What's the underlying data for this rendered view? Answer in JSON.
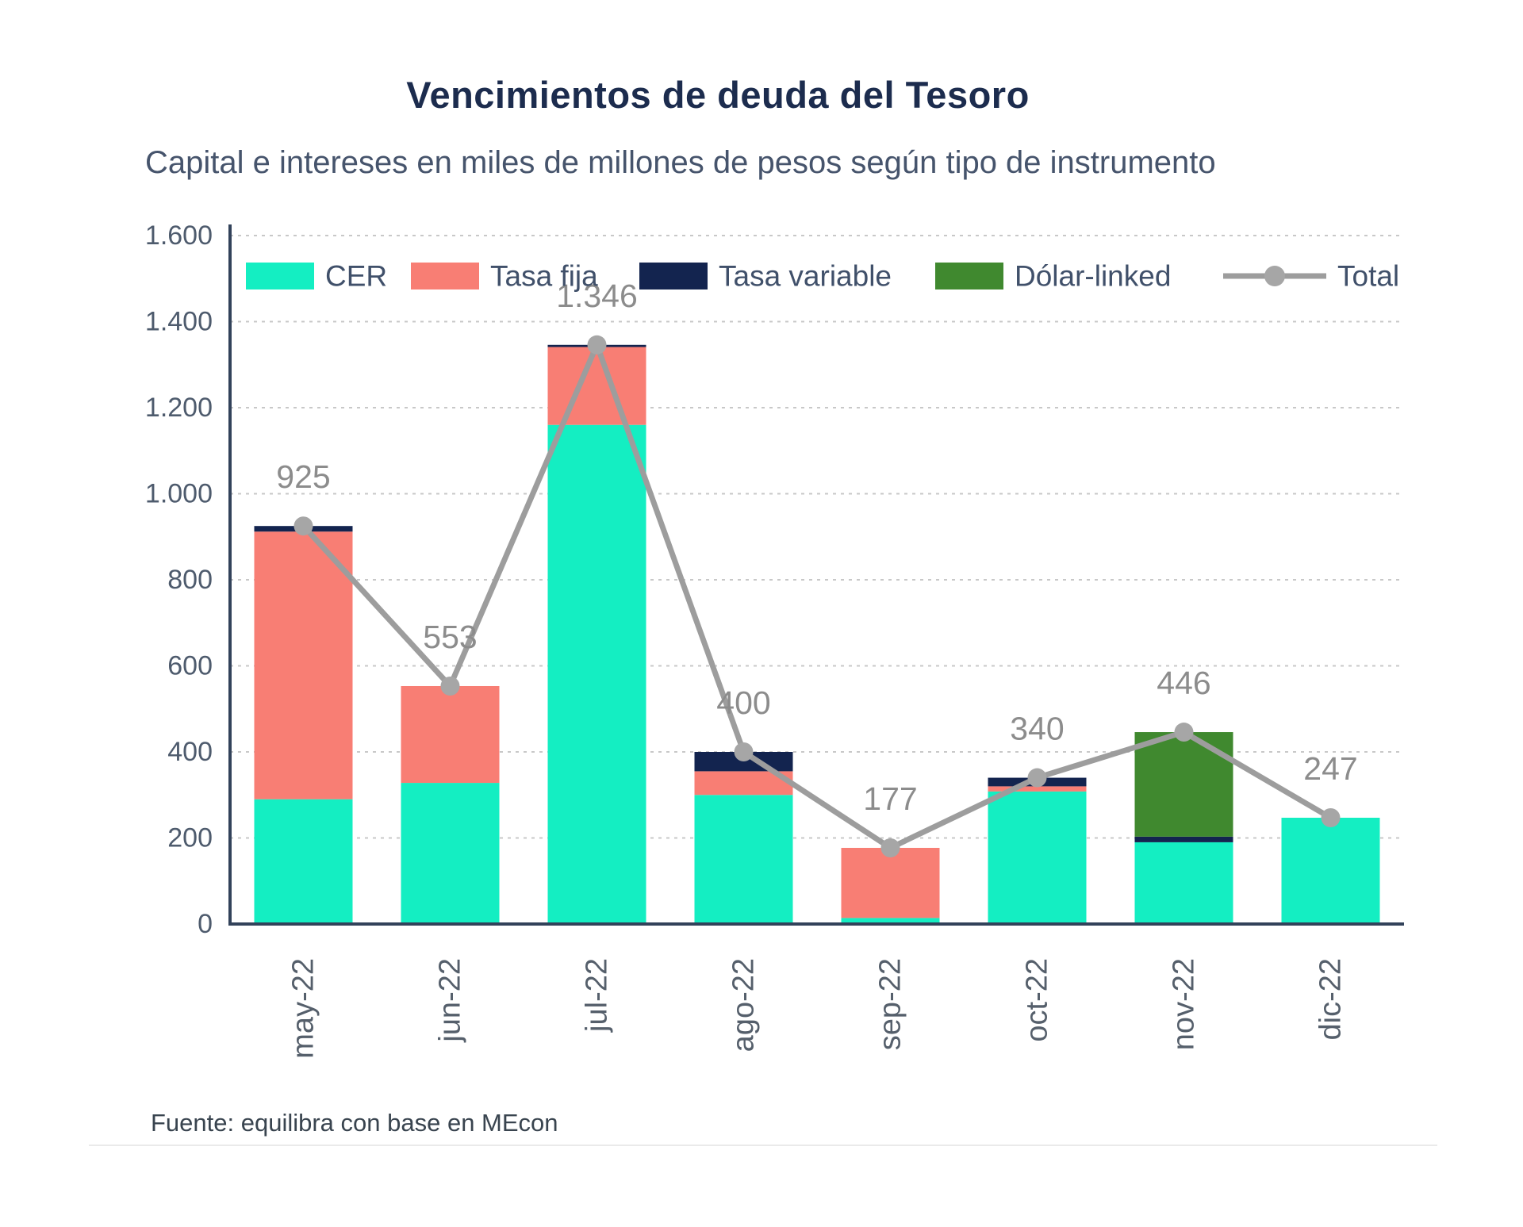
{
  "page": {
    "title": "Vencimientos de deuda del Tesoro",
    "subtitle": "Capital e intereses en miles de millones de pesos según tipo de instrumento",
    "footer": "Fuente: equilibra con base en MEcon"
  },
  "colors": {
    "cer": "#14EEC2",
    "tasa_fija": "#F87E74",
    "tasa_variable": "#13244F",
    "dolar_linked": "#40892F",
    "total_line": "#9D9D9D",
    "total_marker": "#A6A6A6",
    "grid_line": "#C8C8C8",
    "axis_line": "#32425A",
    "y_tick_text": "#4E5B6D",
    "x_tick_text": "#555F6B",
    "data_label_text": "#8C8C8C",
    "legend_text": "#40506A"
  },
  "chart_data": {
    "type": "bar",
    "stacked": true,
    "title": "Vencimientos de deuda del Tesoro",
    "subtitle": "Capital e intereses en miles de millones de pesos según tipo de instrumento",
    "xlabel": "",
    "ylabel": "",
    "ylim": [
      0,
      1600
    ],
    "ytick_step": 200,
    "ytick_labels": [
      "0",
      "200",
      "400",
      "600",
      "800",
      "1.000",
      "1.200",
      "1.400",
      "1.600"
    ],
    "grid": true,
    "legend_position": "top",
    "categories": [
      "may-22",
      "jun-22",
      "jul-22",
      "ago-22",
      "sep-22",
      "oct-22",
      "nov-22",
      "dic-22"
    ],
    "series": [
      {
        "name": "CER",
        "color_key": "cer",
        "values": [
          290,
          328,
          1160,
          300,
          14,
          308,
          190,
          247
        ]
      },
      {
        "name": "Tasa fija",
        "color_key": "tasa_fija",
        "values": [
          622,
          225,
          181,
          55,
          163,
          12,
          0,
          0
        ]
      },
      {
        "name": "Tasa variable",
        "color_key": "tasa_variable",
        "values": [
          13,
          0,
          5,
          45,
          0,
          20,
          13,
          0
        ]
      },
      {
        "name": "Dólar-linked",
        "color_key": "dolar_linked",
        "values": [
          0,
          0,
          0,
          0,
          0,
          0,
          243,
          0
        ]
      }
    ],
    "line_series": {
      "name": "Total",
      "values": [
        925,
        553,
        1346,
        400,
        177,
        340,
        446,
        247
      ],
      "labels": [
        "925",
        "553",
        "1.346",
        "400",
        "177",
        "340",
        "446",
        "247"
      ]
    }
  }
}
